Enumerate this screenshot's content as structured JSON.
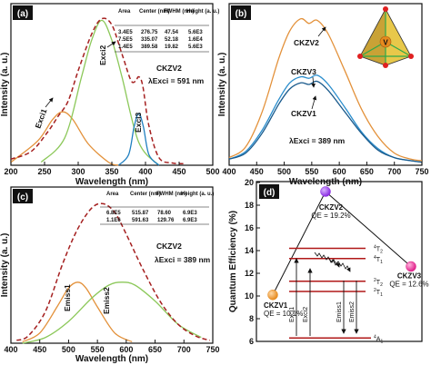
{
  "chart_data": [
    {
      "panel": "(a)",
      "type": "line",
      "xlabel": "Wavelength (nm)",
      "ylabel": "Intensity (a. u.)",
      "xlim": [
        200,
        500
      ],
      "xticks": [
        "200",
        "250",
        "300",
        "350",
        "400",
        "450",
        "500"
      ],
      "annotations": [
        "CKZV2",
        "λExci = 591 nm"
      ],
      "table": {
        "headers": [
          "Area",
          "Center (nm)",
          "FWHM (nm)",
          "Height (a. u.)"
        ],
        "rows": [
          [
            "3.4E5",
            "276.75",
            "47.54",
            "5.6E3"
          ],
          [
            "7.5E5",
            "335.07",
            "52.18",
            "1.6E4"
          ],
          [
            "1.4E5",
            "389.58",
            "19.82",
            "5.6E3"
          ]
        ]
      },
      "peak_labels": [
        "Exci1",
        "Exci2",
        "Exci3"
      ],
      "series": [
        {
          "name": "Exci1",
          "color": "#e3913a",
          "x": [
            200,
            240,
            262,
            277,
            292,
            315,
            345,
            360
          ],
          "y": [
            0.02,
            0.16,
            0.3,
            0.35,
            0.3,
            0.14,
            0.02,
            0.0
          ]
        },
        {
          "name": "Exci2",
          "color": "#8cc85a",
          "x": [
            245,
            280,
            305,
            320,
            335,
            350,
            365,
            390,
            420
          ],
          "y": [
            0.02,
            0.18,
            0.58,
            0.82,
            0.95,
            0.82,
            0.58,
            0.15,
            0.0
          ]
        },
        {
          "name": "Exci3",
          "color": "#1f7fc0",
          "x": [
            360,
            375,
            383,
            390,
            397,
            405,
            420
          ],
          "y": [
            0.0,
            0.07,
            0.25,
            0.34,
            0.25,
            0.07,
            0.0
          ]
        },
        {
          "name": "Total",
          "color": "#a52020",
          "dashed": true,
          "x": [
            200,
            230,
            255,
            270,
            285,
            300,
            320,
            335,
            350,
            365,
            378,
            385,
            390,
            396,
            405,
            420,
            440,
            460
          ],
          "y": [
            0.04,
            0.09,
            0.22,
            0.32,
            0.42,
            0.62,
            0.86,
            0.96,
            0.92,
            0.73,
            0.56,
            0.55,
            0.58,
            0.52,
            0.26,
            0.05,
            0.015,
            0.01
          ]
        }
      ]
    },
    {
      "panel": "(b)",
      "type": "line",
      "xlabel": "Wavelength (nm)",
      "ylabel": "Intensity (a. u.)",
      "xlim": [
        400,
        750
      ],
      "xticks": [
        "400",
        "450",
        "500",
        "550",
        "600",
        "650",
        "700",
        "750"
      ],
      "annotations": [
        "λExci = 389 nm"
      ],
      "inset_label": "V",
      "series": [
        {
          "name": "CKZV2",
          "color": "#e3913a",
          "x": [
            400,
            430,
            460,
            490,
            510,
            530,
            545,
            560,
            580,
            610,
            640,
            670,
            700,
            730,
            750
          ],
          "y": [
            0.05,
            0.12,
            0.35,
            0.7,
            0.88,
            0.96,
            0.93,
            0.95,
            0.86,
            0.62,
            0.37,
            0.19,
            0.08,
            0.04,
            0.03
          ]
        },
        {
          "name": "CKZV3",
          "color": "#2a8dcc",
          "x": [
            400,
            430,
            460,
            490,
            510,
            530,
            545,
            560,
            580,
            610,
            640,
            670,
            700,
            730,
            750
          ],
          "y": [
            0.04,
            0.09,
            0.23,
            0.43,
            0.54,
            0.58,
            0.57,
            0.59,
            0.53,
            0.38,
            0.22,
            0.11,
            0.05,
            0.03,
            0.02
          ]
        },
        {
          "name": "CKZV1",
          "color": "#1a5a8c",
          "x": [
            400,
            430,
            460,
            490,
            510,
            530,
            545,
            560,
            580,
            610,
            640,
            670,
            700,
            730,
            750
          ],
          "y": [
            0.04,
            0.08,
            0.21,
            0.4,
            0.5,
            0.54,
            0.53,
            0.55,
            0.49,
            0.35,
            0.21,
            0.1,
            0.05,
            0.03,
            0.02
          ]
        }
      ]
    },
    {
      "panel": "(c)",
      "type": "line",
      "xlabel": "Wavelength (nm)",
      "ylabel": "Intensity (a. u.)",
      "xlim": [
        400,
        750
      ],
      "xticks": [
        "400",
        "450",
        "500",
        "550",
        "600",
        "650",
        "700",
        "750"
      ],
      "annotations": [
        "CKZV2",
        "λExci = 389 nm"
      ],
      "table": {
        "headers": [
          "Area",
          "Center (nm)",
          "FWHM (nm)",
          "Height (a. u.)"
        ],
        "rows": [
          [
            "6.8E5",
            "515.87",
            "78.60",
            "6.9E3"
          ],
          [
            "1.1E6",
            "591.63",
            "129.76",
            "6.9E3"
          ]
        ]
      },
      "peak_labels": [
        "Emiss1",
        "Emiss2"
      ],
      "series": [
        {
          "name": "Emiss1",
          "color": "#e3913a",
          "x": [
            420,
            450,
            480,
            500,
            516,
            530,
            550,
            580,
            610
          ],
          "y": [
            0.01,
            0.07,
            0.25,
            0.38,
            0.42,
            0.38,
            0.25,
            0.07,
            0.01
          ]
        },
        {
          "name": "Emiss2",
          "color": "#8cc85a",
          "x": [
            420,
            460,
            500,
            540,
            570,
            592,
            615,
            650,
            690,
            730
          ],
          "y": [
            0.0,
            0.04,
            0.15,
            0.31,
            0.4,
            0.42,
            0.4,
            0.29,
            0.13,
            0.04
          ]
        },
        {
          "name": "Total",
          "color": "#a52020",
          "dashed": true,
          "x": [
            410,
            430,
            460,
            490,
            515,
            540,
            560,
            580,
            600,
            630,
            660,
            690,
            720,
            745
          ],
          "y": [
            0.02,
            0.05,
            0.22,
            0.55,
            0.78,
            0.93,
            0.96,
            0.9,
            0.75,
            0.5,
            0.28,
            0.13,
            0.05,
            0.02
          ]
        }
      ]
    },
    {
      "panel": "(d)",
      "type": "scatter",
      "ylabel": "Quantum Efficiency (%)",
      "ylim": [
        6,
        20
      ],
      "yticks": [
        "6",
        "8",
        "10",
        "12",
        "14",
        "16",
        "18",
        "20"
      ],
      "points": [
        {
          "label": "CKZV1",
          "qe_label": "QE = 10.1%",
          "value": 10.1,
          "color": "#e68a1e"
        },
        {
          "label": "CKZV2",
          "qe_label": "QE = 19.2%",
          "value": 19.2,
          "color": "#8a2be2"
        },
        {
          "label": "CKZV3",
          "qe_label": "QE = 12.6%",
          "value": 12.6,
          "color": "#e0208a"
        }
      ],
      "levels": [
        {
          "label": "4T2",
          "value": 14.2
        },
        {
          "label": "4T1",
          "value": 13.3
        },
        {
          "label": "2T2",
          "value": 11.3
        },
        {
          "label": "2T1",
          "value": 10.4
        },
        {
          "label": "4A1",
          "value": 6.3
        }
      ],
      "transitions": [
        "Exci1",
        "Exci2",
        "Emiss1",
        "Emiss2"
      ]
    }
  ]
}
